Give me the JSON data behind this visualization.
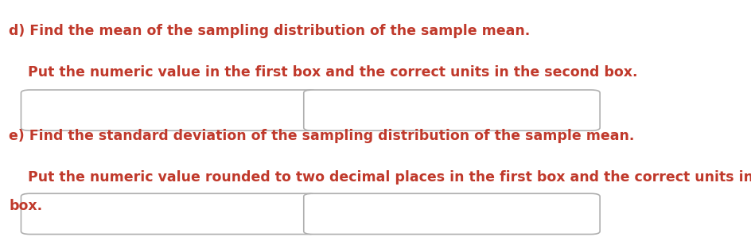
{
  "background_color": "#ffffff",
  "line1_d": "d) Find the mean of the sampling distribution of the sample mean.",
  "line2_d": "    Put the numeric value in the first box and the correct units in the second box.",
  "line1_e": "e) Find the standard deviation of the sampling distribution of the sample mean.",
  "line2_e": "    Put the numeric value rounded to two decimal places in the first box and the correct units in the second",
  "line3_e": "box.",
  "text_color": "#c0392b",
  "box_edge_color": "#b0b0b0",
  "font_size": 12.5,
  "font_family": "DejaVu Sans",
  "fig_width": 9.45,
  "fig_height": 3.03,
  "dpi": 100
}
